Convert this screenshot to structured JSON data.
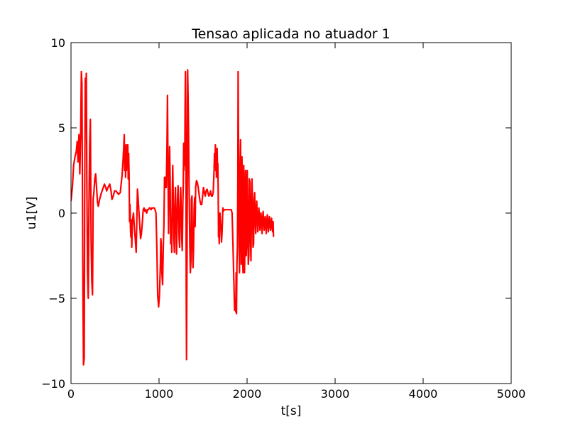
{
  "chart_data": {
    "type": "line",
    "title": "Tensao aplicada no atuador 1",
    "xlabel": "t[s]",
    "ylabel": "u1[V]",
    "xlim": [
      0,
      5000
    ],
    "ylim": [
      -10,
      10
    ],
    "xticks": [
      0,
      1000,
      2000,
      3000,
      4000,
      5000
    ],
    "xtick_labels": [
      "0",
      "1000",
      "2000",
      "3000",
      "4000",
      "5000"
    ],
    "yticks": [
      -10,
      -5,
      0,
      5,
      10
    ],
    "ytick_labels": [
      "−10",
      "−5",
      "0",
      "5",
      "10"
    ],
    "grid": false,
    "legend": "none",
    "series": [
      {
        "color": "#ff0000",
        "points": [
          [
            0,
            0.7
          ],
          [
            15,
            1.5
          ],
          [
            30,
            2.8
          ],
          [
            45,
            3.3
          ],
          [
            60,
            3.6
          ],
          [
            70,
            4.2
          ],
          [
            80,
            3.0
          ],
          [
            90,
            4.6
          ],
          [
            100,
            2.3
          ],
          [
            110,
            4.6
          ],
          [
            118,
            8.3
          ],
          [
            124,
            7.6
          ],
          [
            130,
            1.5
          ],
          [
            136,
            -5.0
          ],
          [
            142,
            -8.9
          ],
          [
            150,
            -8.5
          ],
          [
            156,
            1.0
          ],
          [
            162,
            7.9
          ],
          [
            168,
            7.0
          ],
          [
            174,
            8.2
          ],
          [
            180,
            2.0
          ],
          [
            188,
            -3.5
          ],
          [
            196,
            -5.0
          ],
          [
            204,
            0.5
          ],
          [
            212,
            4.0
          ],
          [
            220,
            5.5
          ],
          [
            228,
            -1.5
          ],
          [
            236,
            -4.0
          ],
          [
            244,
            -4.8
          ],
          [
            252,
            0.8
          ],
          [
            260,
            1.2
          ],
          [
            270,
            2.0
          ],
          [
            280,
            2.3
          ],
          [
            290,
            1.5
          ],
          [
            300,
            0.7
          ],
          [
            310,
            0.4
          ],
          [
            325,
            0.8
          ],
          [
            340,
            1.1
          ],
          [
            360,
            1.4
          ],
          [
            380,
            1.7
          ],
          [
            395,
            1.5
          ],
          [
            405,
            1.3
          ],
          [
            420,
            1.5
          ],
          [
            440,
            1.7
          ],
          [
            455,
            1.3
          ],
          [
            465,
            0.8
          ],
          [
            480,
            1.0
          ],
          [
            495,
            1.3
          ],
          [
            510,
            1.3
          ],
          [
            525,
            1.2
          ],
          [
            540,
            1.1
          ],
          [
            560,
            1.2
          ],
          [
            580,
            2.2
          ],
          [
            590,
            3.0
          ],
          [
            598,
            3.8
          ],
          [
            605,
            4.6
          ],
          [
            610,
            2.5
          ],
          [
            615,
            4.0
          ],
          [
            620,
            2.1
          ],
          [
            625,
            3.5
          ],
          [
            630,
            2.5
          ],
          [
            635,
            4.0
          ],
          [
            640,
            3.2
          ],
          [
            645,
            4.0
          ],
          [
            650,
            2.0
          ],
          [
            655,
            3.5
          ],
          [
            660,
            2.3
          ],
          [
            665,
            -0.5
          ],
          [
            670,
            0.5
          ],
          [
            675,
            -0.8
          ],
          [
            680,
            -1.4
          ],
          [
            685,
            -0.4
          ],
          [
            690,
            -2.0
          ],
          [
            696,
            -0.7
          ],
          [
            702,
            -0.3
          ],
          [
            710,
            0
          ],
          [
            720,
            -0.9
          ],
          [
            730,
            -1.5
          ],
          [
            740,
            -2.3
          ],
          [
            748,
            -0.2
          ],
          [
            755,
            1.4
          ],
          [
            762,
            0.9
          ],
          [
            770,
            0.2
          ],
          [
            780,
            -0.6
          ],
          [
            790,
            -1.5
          ],
          [
            800,
            -1.2
          ],
          [
            810,
            -0.6
          ],
          [
            820,
            0.2
          ],
          [
            830,
            0.3
          ],
          [
            840,
            0.1
          ],
          [
            850,
            0.2
          ],
          [
            860,
            0
          ],
          [
            870,
            0.2
          ],
          [
            880,
            0.2
          ],
          [
            890,
            0.3
          ],
          [
            900,
            0.3
          ],
          [
            910,
            0.2
          ],
          [
            920,
            0.3
          ],
          [
            930,
            0.3
          ],
          [
            945,
            0.3
          ],
          [
            955,
            0.2
          ],
          [
            965,
            0
          ],
          [
            975,
            -2.0
          ],
          [
            985,
            -4.8
          ],
          [
            995,
            -5.5
          ],
          [
            1005,
            -4.8
          ],
          [
            1015,
            -3.0
          ],
          [
            1020,
            -1.5
          ],
          [
            1025,
            -1.8
          ],
          [
            1032,
            -3.5
          ],
          [
            1040,
            -4.2
          ],
          [
            1048,
            -2.0
          ],
          [
            1055,
            -0.8
          ],
          [
            1062,
            2.1
          ],
          [
            1068,
            1.5
          ],
          [
            1072,
            2.1
          ],
          [
            1077,
            1.5
          ],
          [
            1082,
            1.5
          ],
          [
            1090,
            4.0
          ],
          [
            1096,
            6.9
          ],
          [
            1102,
            2.5
          ],
          [
            1108,
            -1.2
          ],
          [
            1114,
            1.5
          ],
          [
            1120,
            3.9
          ],
          [
            1126,
            2.0
          ],
          [
            1132,
            -1.8
          ],
          [
            1138,
            -0.5
          ],
          [
            1144,
            -2.3
          ],
          [
            1150,
            1.0
          ],
          [
            1156,
            2.8
          ],
          [
            1162,
            0.6
          ],
          [
            1168,
            -1.4
          ],
          [
            1174,
            -2.3
          ],
          [
            1180,
            0.2
          ],
          [
            1186,
            1.5
          ],
          [
            1192,
            -0.3
          ],
          [
            1198,
            -2.4
          ],
          [
            1204,
            -1.0
          ],
          [
            1210,
            0.8
          ],
          [
            1216,
            1.6
          ],
          [
            1222,
            0.2
          ],
          [
            1228,
            -1.5
          ],
          [
            1234,
            -2.0
          ],
          [
            1240,
            0.5
          ],
          [
            1246,
            1.5
          ],
          [
            1252,
            0.2
          ],
          [
            1258,
            -1.5
          ],
          [
            1264,
            -2.2
          ],
          [
            1270,
            0.5
          ],
          [
            1276,
            1.8
          ],
          [
            1280,
            4.1
          ],
          [
            1283,
            2.5
          ],
          [
            1286,
            4.0
          ],
          [
            1289,
            3.0
          ],
          [
            1292,
            2.8
          ],
          [
            1296,
            6.3
          ],
          [
            1300,
            8.3
          ],
          [
            1303,
            6.5
          ],
          [
            1306,
            4.0
          ],
          [
            1309,
            -4.5
          ],
          [
            1312,
            -8.6
          ],
          [
            1316,
            -4.5
          ],
          [
            1320,
            0.5
          ],
          [
            1325,
            8.4
          ],
          [
            1330,
            6.8
          ],
          [
            1335,
            5.0
          ],
          [
            1340,
            2.0
          ],
          [
            1345,
            0
          ],
          [
            1350,
            -2.0
          ],
          [
            1356,
            -3.5
          ],
          [
            1362,
            -2.8
          ],
          [
            1368,
            0.8
          ],
          [
            1374,
            1.0
          ],
          [
            1380,
            -1.8
          ],
          [
            1386,
            -3.2
          ],
          [
            1392,
            -2.1
          ],
          [
            1398,
            0.3
          ],
          [
            1404,
            0.9
          ],
          [
            1410,
            -0.8
          ],
          [
            1416,
            1.5
          ],
          [
            1425,
            1.9
          ],
          [
            1435,
            1.8
          ],
          [
            1445,
            1.5
          ],
          [
            1455,
            1.1
          ],
          [
            1465,
            0.7
          ],
          [
            1475,
            0.5
          ],
          [
            1485,
            0.5
          ],
          [
            1495,
            1.0
          ],
          [
            1505,
            1.5
          ],
          [
            1515,
            1.2
          ],
          [
            1525,
            1.0
          ],
          [
            1535,
            1.3
          ],
          [
            1545,
            1.4
          ],
          [
            1555,
            1.2
          ],
          [
            1565,
            1.0
          ],
          [
            1575,
            1.1
          ],
          [
            1585,
            1.3
          ],
          [
            1595,
            1.0
          ],
          [
            1605,
            1.0
          ],
          [
            1615,
            1.2
          ],
          [
            1625,
            2.5
          ],
          [
            1630,
            3.5
          ],
          [
            1636,
            3.0
          ],
          [
            1640,
            4.0
          ],
          [
            1644,
            2.5
          ],
          [
            1648,
            3.3
          ],
          [
            1652,
            2.1
          ],
          [
            1656,
            3.0
          ],
          [
            1660,
            3.8
          ],
          [
            1664,
            2.7
          ],
          [
            1668,
            2.9
          ],
          [
            1672,
            1.3
          ],
          [
            1676,
            -1.4
          ],
          [
            1680,
            -0.8
          ],
          [
            1684,
            -1.8
          ],
          [
            1688,
            -0.2
          ],
          [
            1692,
            0
          ],
          [
            1698,
            -0.5
          ],
          [
            1704,
            -1.0
          ],
          [
            1710,
            -1.7
          ],
          [
            1715,
            -1.2
          ],
          [
            1720,
            -0.5
          ],
          [
            1725,
            0.3
          ],
          [
            1730,
            0.1
          ],
          [
            1740,
            0.2
          ],
          [
            1750,
            0.2
          ],
          [
            1760,
            0.2
          ],
          [
            1770,
            0.2
          ],
          [
            1780,
            0.2
          ],
          [
            1790,
            0.2
          ],
          [
            1800,
            0.2
          ],
          [
            1810,
            0.2
          ],
          [
            1820,
            0.2
          ],
          [
            1830,
            0
          ],
          [
            1840,
            -2.0
          ],
          [
            1850,
            -4.0
          ],
          [
            1858,
            -5.7
          ],
          [
            1866,
            -5.0
          ],
          [
            1872,
            -5.8
          ],
          [
            1876,
            -3.5
          ],
          [
            1880,
            -5.9
          ],
          [
            1885,
            -3.0
          ],
          [
            1890,
            -2.0
          ],
          [
            1895,
            2.0
          ],
          [
            1898,
            8.3
          ],
          [
            1902,
            5.0
          ],
          [
            1906,
            2.5
          ],
          [
            1910,
            -1.5
          ],
          [
            1914,
            -3.5
          ],
          [
            1918,
            0.5
          ],
          [
            1922,
            2.4
          ],
          [
            1926,
            4.3
          ],
          [
            1930,
            -0.5
          ],
          [
            1934,
            -3.0
          ],
          [
            1938,
            0
          ],
          [
            1942,
            3.3
          ],
          [
            1946,
            1.5
          ],
          [
            1950,
            -2.5
          ],
          [
            1954,
            -3.5
          ],
          [
            1958,
            0.5
          ],
          [
            1962,
            2.8
          ],
          [
            1966,
            0
          ],
          [
            1970,
            -3.5
          ],
          [
            1974,
            -2.5
          ],
          [
            1978,
            1.5
          ],
          [
            1982,
            2.5
          ],
          [
            1986,
            0
          ],
          [
            1990,
            -2.5
          ],
          [
            1994,
            -2.0
          ],
          [
            1998,
            1.0
          ],
          [
            2002,
            2.5
          ],
          [
            2008,
            0
          ],
          [
            2014,
            -3.0
          ],
          [
            2020,
            -2.5
          ],
          [
            2026,
            2.0
          ],
          [
            2032,
            1.8
          ],
          [
            2038,
            -1.5
          ],
          [
            2044,
            -2.8
          ],
          [
            2050,
            0.5
          ],
          [
            2056,
            2.0
          ],
          [
            2062,
            0.5
          ],
          [
            2068,
            -2.0
          ],
          [
            2074,
            -1.8
          ],
          [
            2080,
            0.8
          ],
          [
            2086,
            1.2
          ],
          [
            2092,
            -0.5
          ],
          [
            2098,
            -1.2
          ],
          [
            2104,
            0.2
          ],
          [
            2110,
            0.7
          ],
          [
            2116,
            -0.3
          ],
          [
            2122,
            -1.1
          ],
          [
            2128,
            -0.4
          ],
          [
            2134,
            0.3
          ],
          [
            2140,
            -0.2
          ],
          [
            2146,
            -1.0
          ],
          [
            2152,
            -0.6
          ],
          [
            2158,
            0
          ],
          [
            2164,
            -0.5
          ],
          [
            2170,
            -1.2
          ],
          [
            2176,
            -0.5
          ],
          [
            2182,
            0.1
          ],
          [
            2188,
            -0.4
          ],
          [
            2194,
            -1.0
          ],
          [
            2200,
            -0.7
          ],
          [
            2206,
            -0.2
          ],
          [
            2212,
            -0.6
          ],
          [
            2218,
            -1.2
          ],
          [
            2224,
            -0.5
          ],
          [
            2230,
            -0.1
          ],
          [
            2236,
            -0.6
          ],
          [
            2242,
            -1.1
          ],
          [
            2248,
            -0.5
          ],
          [
            2254,
            -0.2
          ],
          [
            2260,
            -0.7
          ],
          [
            2266,
            -1.0
          ],
          [
            2272,
            -0.6
          ],
          [
            2278,
            -0.3
          ],
          [
            2284,
            -0.8
          ],
          [
            2290,
            -1.1
          ],
          [
            2296,
            -0.5
          ],
          [
            2300,
            -1.4
          ]
        ]
      }
    ]
  }
}
